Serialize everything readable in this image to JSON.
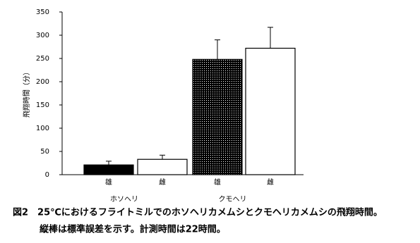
{
  "chart_data": {
    "type": "bar",
    "y_label": "飛翔時間（分）",
    "categories": [
      "雄",
      "雌",
      "雄",
      "雌"
    ],
    "groups": [
      "ホソヘリ",
      "クモヘリ"
    ],
    "values": [
      21,
      33,
      248,
      272
    ],
    "errors": [
      8,
      9,
      42,
      45
    ],
    "fills": [
      "#000000",
      "#ffffff",
      "dots",
      "#ffffff"
    ],
    "ylim": [
      0,
      350
    ],
    "yticks": [
      0,
      50,
      100,
      150,
      200,
      250,
      300,
      350
    ],
    "caption": [
      "図2　25℃におけるフライトミルでのホソヘリカメムシとクモヘリカメムシの飛翔時間。",
      "縦棒は標準誤差を示す。計測時間は22時間。"
    ]
  }
}
